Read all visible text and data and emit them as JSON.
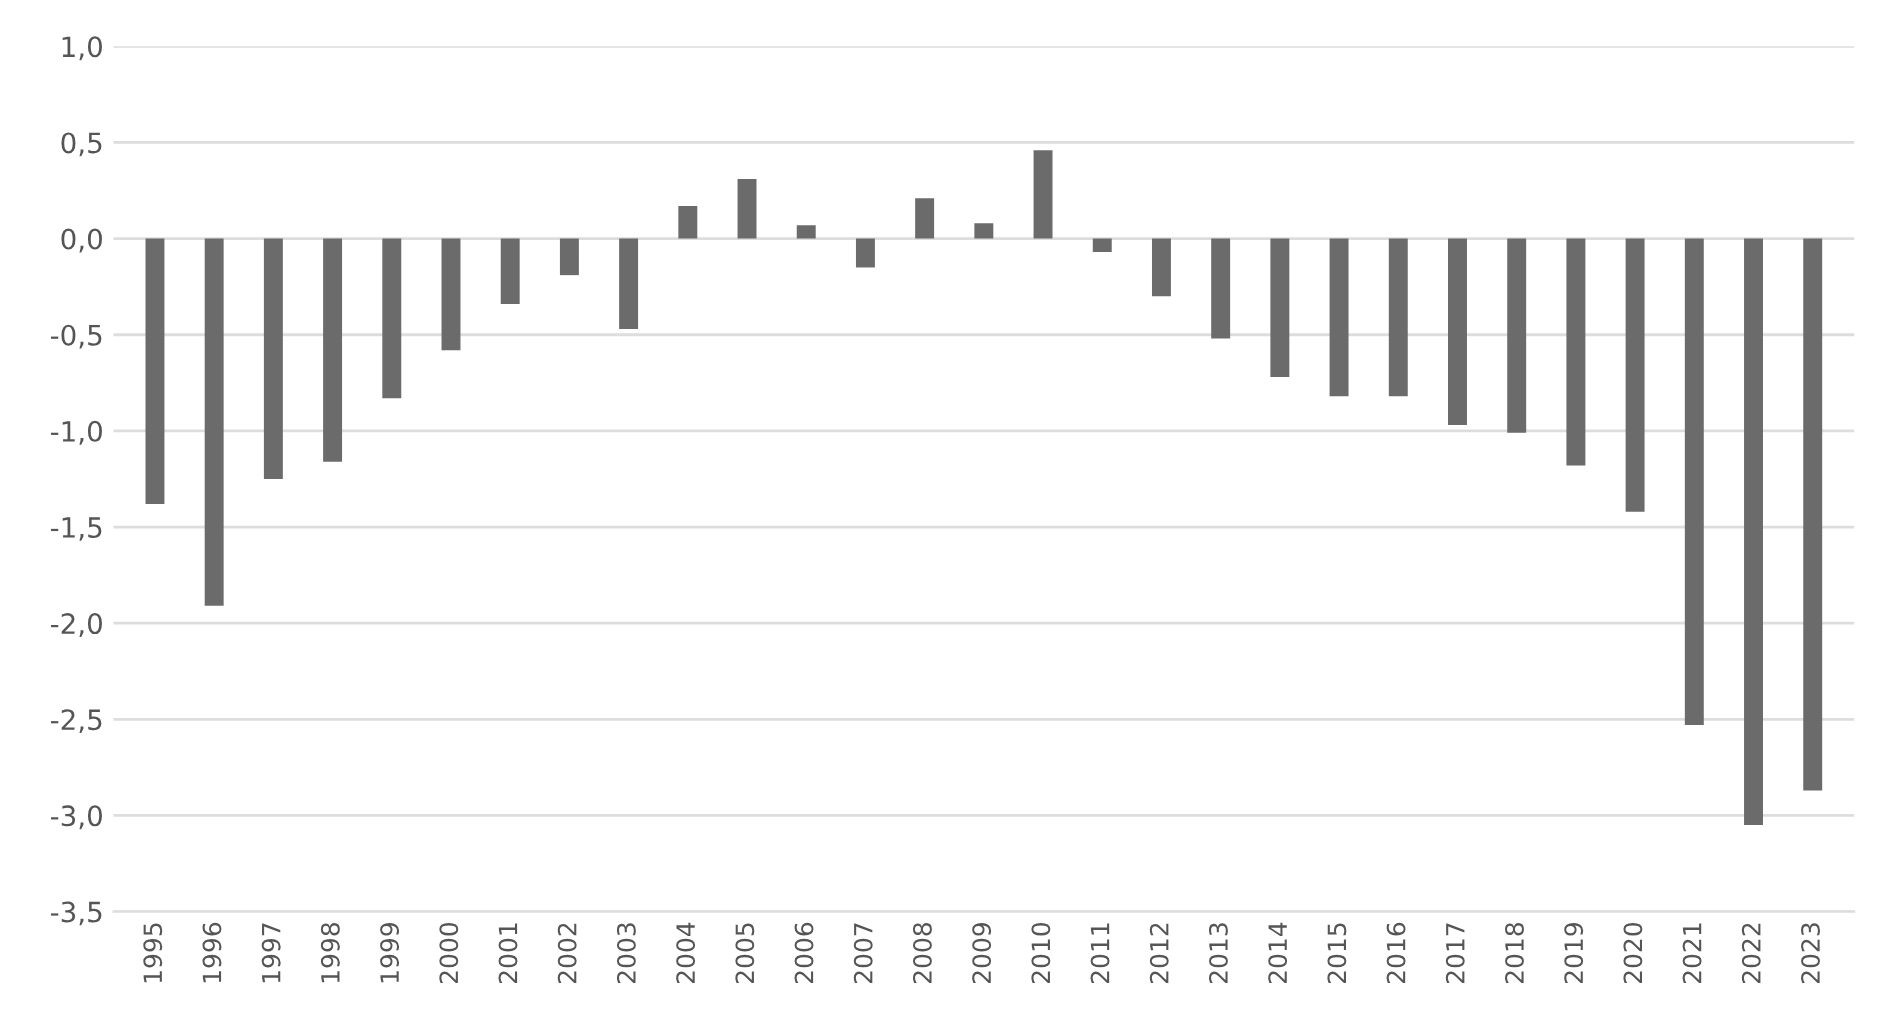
{
  "chart_data": {
    "type": "bar",
    "categories": [
      "1995",
      "1996",
      "1997",
      "1998",
      "1999",
      "2000",
      "2001",
      "2002",
      "2003",
      "2004",
      "2005",
      "2006",
      "2007",
      "2008",
      "2009",
      "2010",
      "2011",
      "2012",
      "2013",
      "2014",
      "2015",
      "2016",
      "2017",
      "2018",
      "2019",
      "2020",
      "2021",
      "2022",
      "2023"
    ],
    "values": [
      -1.38,
      -1.91,
      -1.25,
      -1.16,
      -0.83,
      -0.58,
      -0.34,
      -0.19,
      -0.47,
      0.17,
      0.31,
      0.07,
      -0.15,
      0.21,
      0.08,
      0.46,
      -0.07,
      -0.3,
      -0.52,
      -0.72,
      -0.82,
      -0.82,
      -0.97,
      -1.01,
      -1.18,
      -1.42,
      -2.53,
      -3.05,
      -2.87
    ],
    "color": "#6b6b6b",
    "ylim": [
      -3.5,
      1.0
    ],
    "yticks": [
      {
        "value": 1.0,
        "label": "1,0"
      },
      {
        "value": 0.5,
        "label": "0,5"
      },
      {
        "value": 0.0,
        "label": "0,0"
      },
      {
        "value": -0.5,
        "label": "-0,5"
      },
      {
        "value": -1.0,
        "label": "-1,0"
      },
      {
        "value": -1.5,
        "label": "-1,5"
      },
      {
        "value": -2.0,
        "label": "-2,0"
      },
      {
        "value": -2.5,
        "label": "-2,5"
      },
      {
        "value": -3.0,
        "label": "-3,0"
      },
      {
        "value": -3.5,
        "label": "-3,5"
      }
    ],
    "grid": "y"
  }
}
